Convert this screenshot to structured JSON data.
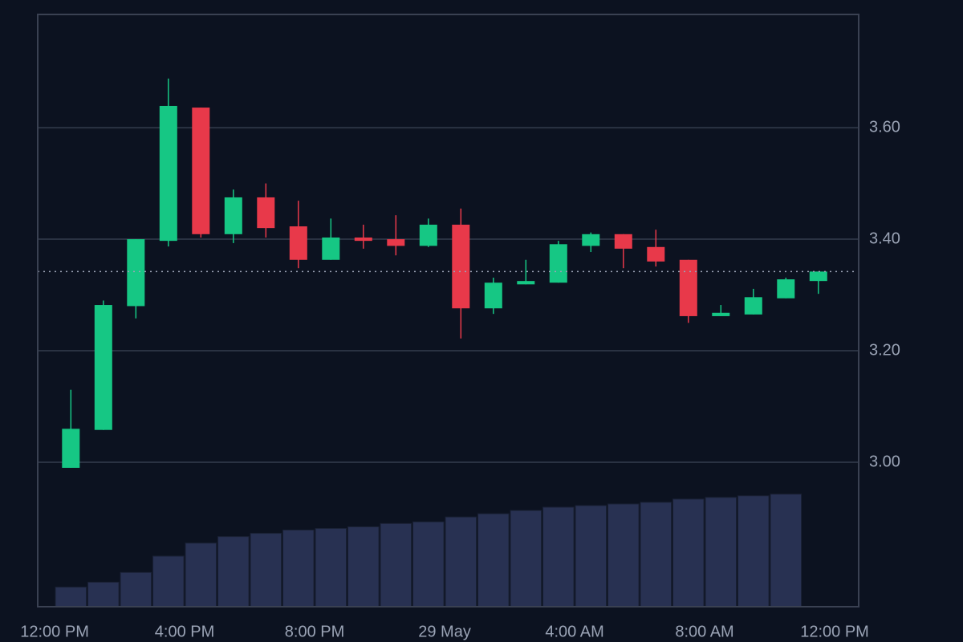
{
  "chart_data": {
    "type": "candlestick",
    "x": [
      0.5,
      1.5,
      2.5,
      3.5,
      4.5,
      5.5,
      6.5,
      7.5,
      8.5,
      9.5,
      10.5,
      11.5,
      12.5,
      13.5,
      14.5,
      15.5,
      16.5,
      17.5,
      18.5,
      19.5,
      20.5,
      21.5,
      22.5,
      23.5
    ],
    "open": [
      2.99,
      3.058,
      3.28,
      3.397,
      3.636,
      3.409,
      3.475,
      3.423,
      3.363,
      3.403,
      3.4,
      3.388,
      3.426,
      3.276,
      3.319,
      3.322,
      3.388,
      3.409,
      3.386,
      3.363,
      3.262,
      3.265,
      3.294,
      3.325
    ],
    "high": [
      3.13,
      3.29,
      3.4,
      3.688,
      3.636,
      3.489,
      3.5,
      3.469,
      3.437,
      3.426,
      3.443,
      3.437,
      3.455,
      3.331,
      3.363,
      3.397,
      3.412,
      3.409,
      3.417,
      3.363,
      3.282,
      3.311,
      3.331,
      3.342
    ],
    "low": [
      2.99,
      3.058,
      3.258,
      3.387,
      3.403,
      3.393,
      3.403,
      3.348,
      3.363,
      3.383,
      3.371,
      3.386,
      3.222,
      3.266,
      3.319,
      3.322,
      3.377,
      3.348,
      3.351,
      3.25,
      3.262,
      3.265,
      3.294,
      3.302
    ],
    "close": [
      3.06,
      3.282,
      3.4,
      3.639,
      3.409,
      3.475,
      3.42,
      3.363,
      3.403,
      3.397,
      3.388,
      3.426,
      3.276,
      3.322,
      3.325,
      3.391,
      3.409,
      3.383,
      3.36,
      3.262,
      3.268,
      3.296,
      3.328,
      3.342
    ],
    "volume": [
      24,
      30,
      42,
      62,
      78,
      86,
      90,
      94,
      96,
      98,
      102,
      104,
      110,
      114,
      118,
      122,
      124,
      126,
      128,
      132,
      134,
      136,
      138,
      null
    ],
    "up_color": "#16c784",
    "down_color": "#e8394a",
    "volume_color": "#283152",
    "xlim": [
      -0.52,
      24.74
    ],
    "xticks": [
      {
        "value": 0,
        "label": "12:00 PM"
      },
      {
        "value": 4,
        "label": "4:00 PM"
      },
      {
        "value": 8,
        "label": "8:00 PM"
      },
      {
        "value": 12,
        "label": "29 May"
      },
      {
        "value": 16,
        "label": "4:00 AM"
      },
      {
        "value": 20,
        "label": "8:00 AM"
      },
      {
        "value": 24,
        "label": "12:00 PM"
      }
    ],
    "ylim": [
      2.741,
      3.803
    ],
    "yticks": [
      {
        "value": 3.0,
        "label": "3.00"
      },
      {
        "value": 3.2,
        "label": "3.20"
      },
      {
        "value": 3.4,
        "label": "3.40"
      },
      {
        "value": 3.6,
        "label": "3.60"
      }
    ],
    "grid": true
  }
}
